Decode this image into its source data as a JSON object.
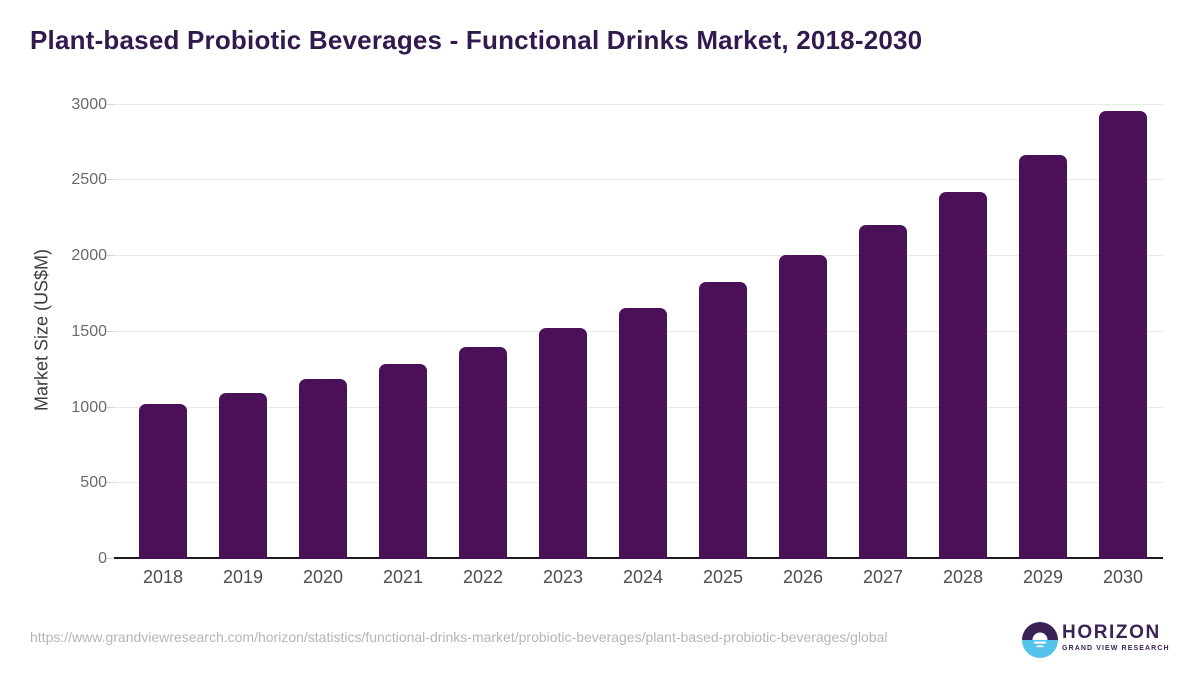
{
  "title": "Plant-based Probiotic Beverages - Functional Drinks Market, 2018-2030",
  "chart_data": {
    "type": "bar",
    "categories": [
      "2018",
      "2019",
      "2020",
      "2021",
      "2022",
      "2023",
      "2024",
      "2025",
      "2026",
      "2027",
      "2028",
      "2029",
      "2030"
    ],
    "values": [
      1025,
      1095,
      1185,
      1290,
      1400,
      1525,
      1660,
      1830,
      2005,
      2205,
      2425,
      2670,
      2955
    ],
    "title": "Plant-based Probiotic Beverages - Functional Drinks Market, 2018-2030",
    "xlabel": "",
    "ylabel": "Market Size (US$M)",
    "ylim": [
      0,
      3000
    ],
    "yticks": [
      0,
      500,
      1000,
      1500,
      2000,
      2500,
      3000
    ],
    "grid": true,
    "legend": "none",
    "bar_color": "#4a1158"
  },
  "footer": {
    "source_url": "https://www.grandviewresearch.com/horizon/statistics/functional-drinks-market/probiotic-beverages/plant-based-probiotic-beverages/global",
    "logo": {
      "brand": "HORIZON",
      "subbrand": "GRAND VIEW RESEARCH"
    }
  },
  "colors": {
    "title_text": "#331a4e",
    "bar": "#4a1158",
    "logo_purple": "#3b2356",
    "logo_blue": "#56c3ee",
    "gridline": "#e8e8e8",
    "axis_line": "#1c1c1c"
  }
}
